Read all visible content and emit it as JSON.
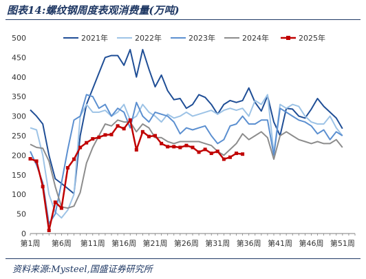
{
  "title": "图表14:螺纹钢周度表观消费量(万吨)",
  "source": "资料来源:Mysteel,国盛证券研究所",
  "chart_data": {
    "type": "line",
    "ylim": [
      0,
      500
    ],
    "yticks": [
      0,
      50,
      100,
      150,
      200,
      250,
      300,
      350,
      400,
      450,
      500
    ],
    "x_tick_labels": [
      "第1周",
      "第6周",
      "第11周",
      "第16周",
      "第21周",
      "第26周",
      "第31周",
      "第36周",
      "第41周",
      "第46周",
      "第51周"
    ],
    "x_tick_weeks": [
      1,
      6,
      11,
      16,
      21,
      26,
      31,
      36,
      41,
      46,
      51
    ],
    "x_range": [
      1,
      53
    ],
    "legend_position": "top",
    "grid": false,
    "series": [
      {
        "name": "2021年",
        "color": "#1f4e96",
        "width": 2,
        "marker": false,
        "values": [
          316,
          300,
          280,
          200,
          140,
          128,
          115,
          102,
          250,
          330,
          370,
          410,
          450,
          455,
          455,
          430,
          470,
          400,
          470,
          420,
          375,
          405,
          365,
          342,
          345,
          320,
          330,
          355,
          348,
          330,
          305,
          330,
          340,
          335,
          340,
          372,
          335,
          313,
          352,
          285,
          250,
          320,
          318,
          300,
          295,
          318,
          345,
          325,
          310,
          295,
          268
        ]
      },
      {
        "name": "2022年",
        "color": "#9dc3e6",
        "width": 2,
        "marker": false,
        "values": [
          270,
          265,
          200,
          100,
          55,
          40,
          60,
          100,
          300,
          330,
          310,
          310,
          315,
          300,
          310,
          330,
          290,
          300,
          330,
          310,
          300,
          285,
          305,
          295,
          300,
          310,
          300,
          305,
          310,
          315,
          305,
          315,
          320,
          315,
          320,
          300,
          340,
          330,
          355,
          205,
          330,
          320,
          330,
          325,
          300,
          285,
          280,
          280,
          300,
          270,
          250
        ]
      },
      {
        "name": "2023年",
        "color": "#5b8fd0",
        "width": 2,
        "marker": false,
        "values": [
          210,
          175,
          130,
          25,
          50,
          130,
          215,
          290,
          300,
          355,
          350,
          320,
          330,
          300,
          320,
          310,
          270,
          335,
          300,
          285,
          310,
          305,
          300,
          285,
          255,
          270,
          265,
          270,
          275,
          250,
          230,
          240,
          275,
          280,
          300,
          280,
          280,
          290,
          290,
          200,
          320,
          310,
          300,
          290,
          285,
          275,
          255,
          265,
          240,
          260,
          250
        ]
      },
      {
        "name": "2024年",
        "color": "#8c8c8c",
        "width": 2,
        "marker": false,
        "values": [
          228,
          220,
          218,
          185,
          120,
          68,
          65,
          70,
          105,
          180,
          220,
          250,
          280,
          275,
          290,
          285,
          285,
          260,
          280,
          270,
          245,
          245,
          235,
          230,
          235,
          235,
          235,
          235,
          230,
          225,
          210,
          200,
          215,
          230,
          255,
          240,
          250,
          260,
          245,
          190,
          250,
          260,
          250,
          240,
          235,
          230,
          235,
          230,
          230,
          240,
          220
        ]
      },
      {
        "name": "2025年",
        "color": "#c00000",
        "width": 2.5,
        "marker": true,
        "values": [
          191,
          185,
          120,
          8,
          80,
          65,
          168,
          190,
          220,
          232,
          242,
          246,
          252,
          253,
          275,
          268,
          290,
          214,
          260,
          248,
          250,
          230,
          222,
          222,
          220,
          225,
          220,
          208,
          215,
          205,
          210,
          190,
          195,
          205,
          203
        ]
      }
    ]
  }
}
